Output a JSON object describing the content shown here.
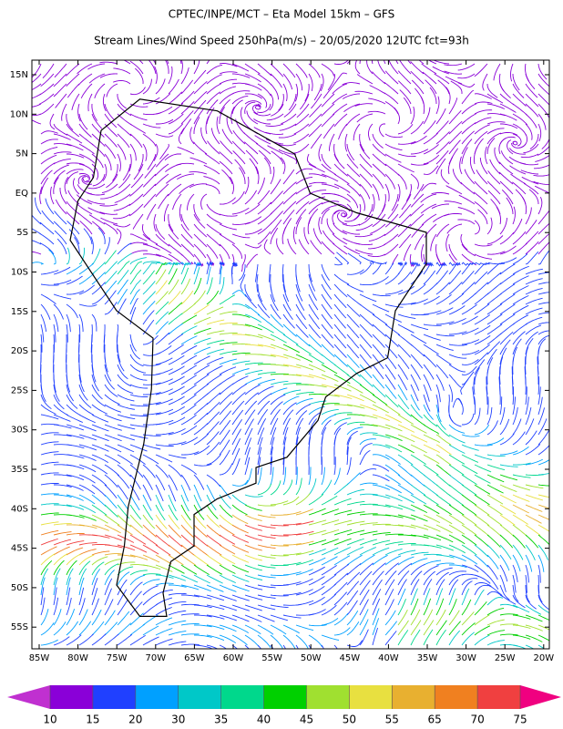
{
  "header": {
    "title": "CPTEC/INPE/MCT –  Eta Model 15km – GFS",
    "subtitle": "Stream Lines/Wind Speed 250hPa(m/s) – 20/05/2020 12UTC fct=93h"
  },
  "map": {
    "lat_labels": [
      "15N",
      "10N",
      "5N",
      "EQ",
      "5S",
      "10S",
      "15S",
      "20S",
      "25S",
      "30S",
      "35S",
      "40S",
      "45S",
      "50S",
      "55S"
    ],
    "lon_labels": [
      "85W",
      "80W",
      "75W",
      "70W",
      "65W",
      "60W",
      "55W",
      "50W",
      "45W",
      "40W",
      "35W",
      "30W",
      "25W",
      "20W"
    ]
  },
  "colorbar": {
    "ticks": [
      10,
      15,
      20,
      30,
      35,
      40,
      45,
      50,
      55,
      65,
      70,
      75
    ],
    "colors": [
      "#c030d0",
      "#8a00d8",
      "#2040ff",
      "#00a0ff",
      "#00c8c8",
      "#00d88c",
      "#00d000",
      "#a0e030",
      "#e8e040",
      "#e8b030",
      "#f08020",
      "#f04040",
      "#f00080"
    ]
  }
}
